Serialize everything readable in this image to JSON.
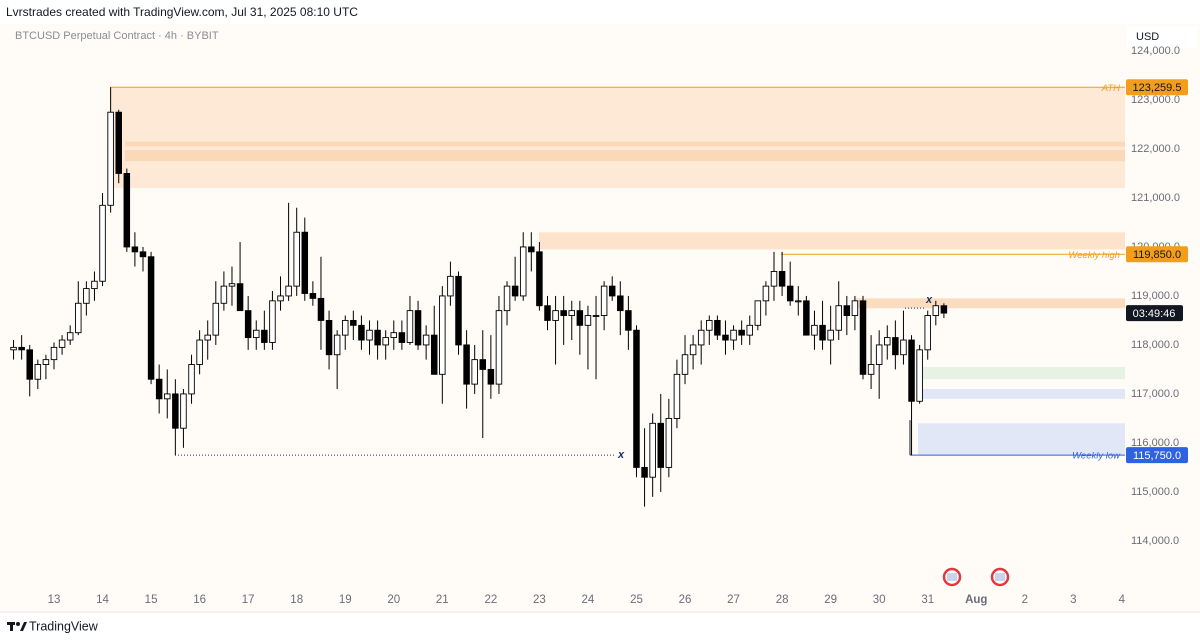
{
  "header": {
    "attribution": "Lvrstrades created with TradingView.com, Jul 31, 2025 08:10 UTC"
  },
  "footer": {
    "brand": "TradingView"
  },
  "chart_data": {
    "type": "candlestick",
    "title": "BTCUSD Perpetual Contract · 4h · BYBIT",
    "currency": "USD",
    "categories": [
      null,
      null,
      null,
      null,
      null,
      "13",
      null,
      null,
      null,
      null,
      null,
      "14",
      null,
      null,
      null,
      null,
      null,
      "15",
      null,
      null,
      null,
      null,
      null,
      "16",
      null,
      null,
      null,
      null,
      null,
      "17",
      null,
      null,
      null,
      null,
      null,
      "18",
      null,
      null,
      null,
      null,
      null,
      "19",
      null,
      null,
      null,
      null,
      null,
      "20",
      null,
      null,
      null,
      null,
      null,
      "21",
      null,
      null,
      null,
      null,
      null,
      "22",
      null,
      null,
      null,
      null,
      null,
      "23",
      null,
      null,
      null,
      null,
      null,
      "24",
      null,
      null,
      null,
      null,
      null,
      "25",
      null,
      null,
      null,
      null,
      null,
      "26",
      null,
      null,
      null,
      null,
      null,
      "27",
      null,
      null,
      null,
      null,
      null,
      "28",
      null,
      null,
      null,
      null,
      null,
      "29",
      null,
      null,
      null,
      null,
      null,
      "30",
      null,
      null,
      null,
      null,
      null,
      "31",
      null,
      null,
      null,
      null,
      null,
      "Aug",
      null,
      null,
      null,
      null,
      null,
      "2",
      null,
      null,
      null,
      null,
      null,
      "3",
      null,
      null,
      null,
      null,
      null,
      "4"
    ],
    "open": [
      117900,
      117950,
      117900,
      117300,
      117600,
      117700,
      117950,
      118100,
      118250,
      118850,
      119150,
      119300,
      120850,
      122750,
      121500,
      120000,
      119900,
      119800,
      117300,
      116900,
      117000,
      116300,
      117000,
      117600,
      118100,
      118200,
      118850,
      119200,
      119250,
      118700,
      118150,
      118300,
      118050,
      118900,
      119000,
      119200,
      120300,
      119050,
      118950,
      118500,
      117800,
      118200,
      118500,
      118400,
      118100,
      118300,
      118000,
      118150,
      118250,
      118050,
      118700,
      118000,
      118200,
      117400,
      119000,
      119400,
      118000,
      117200,
      117700,
      117500,
      117200,
      118700,
      119200,
      119000,
      120000,
      119900,
      118800,
      118500,
      118700,
      118600,
      118700,
      118400,
      118600,
      118600,
      119200,
      119000,
      118700,
      118300,
      115500,
      115300,
      116400,
      115500,
      116500,
      117400,
      117800,
      118000,
      118300,
      118500,
      118200,
      118100,
      118300,
      118200,
      118400,
      118900,
      119200,
      119500,
      119200,
      118900,
      118900,
      118200,
      118400,
      118100,
      118300,
      118800,
      118600,
      118900,
      117400,
      117600,
      118000,
      118150,
      117800,
      118100,
      116850,
      117900,
      118600,
      118800,
      null,
      null,
      null,
      null,
      null,
      null,
      null,
      null,
      null,
      null,
      null,
      null,
      null,
      null,
      null,
      null,
      null,
      null,
      null,
      null,
      null,
      null
    ],
    "high": [
      118100,
      118200,
      118000,
      117700,
      117800,
      118050,
      118200,
      118400,
      119300,
      119300,
      119500,
      121100,
      123259.5,
      122800,
      121600,
      120300,
      120000,
      119900,
      117600,
      117500,
      117300,
      117100,
      117800,
      118300,
      118500,
      119300,
      119500,
      119600,
      120100,
      119000,
      118500,
      118700,
      119100,
      119400,
      120900,
      120800,
      120600,
      119300,
      119800,
      118700,
      118300,
      118600,
      118700,
      118600,
      118500,
      118500,
      118300,
      118500,
      118500,
      119000,
      118900,
      118400,
      118800,
      119200,
      119700,
      119500,
      118300,
      118000,
      118300,
      118200,
      119000,
      119300,
      119800,
      120300,
      120300,
      120100,
      119000,
      119000,
      119000,
      118900,
      118900,
      118800,
      119000,
      119300,
      119400,
      119300,
      119000,
      118400,
      116300,
      116600,
      117000,
      116900,
      117700,
      118200,
      118200,
      118500,
      118600,
      118600,
      118500,
      118400,
      118500,
      118600,
      118900,
      119300,
      119900,
      119900,
      119700,
      119200,
      119000,
      118700,
      118900,
      118800,
      119300,
      119000,
      119000,
      119000,
      118200,
      118300,
      118400,
      118500,
      118700,
      118200,
      118000,
      118700,
      118900,
      118850,
      null,
      null,
      null,
      null,
      null,
      null,
      null,
      null,
      null,
      null,
      null,
      null,
      null,
      null,
      null,
      null,
      null,
      null,
      null,
      null,
      null,
      null
    ],
    "low": [
      117700,
      117700,
      116950,
      117100,
      117300,
      117500,
      117800,
      118000,
      118200,
      118600,
      118900,
      119200,
      120700,
      121300,
      119900,
      119600,
      119500,
      117200,
      116600,
      116500,
      115750,
      115900,
      116800,
      117400,
      117700,
      118000,
      118700,
      118800,
      118700,
      117900,
      117900,
      117900,
      117900,
      118700,
      118900,
      119000,
      118900,
      118800,
      117900,
      117500,
      117100,
      117900,
      118100,
      117900,
      117800,
      117700,
      117700,
      117900,
      117900,
      118000,
      117900,
      117700,
      117400,
      116800,
      118800,
      117800,
      116700,
      117000,
      116100,
      116900,
      117000,
      118400,
      118900,
      118900,
      119500,
      118700,
      118300,
      117600,
      118000,
      118100,
      117800,
      117500,
      117300,
      118300,
      118900,
      118200,
      117900,
      115300,
      114700,
      114900,
      115000,
      115300,
      116300,
      117200,
      117500,
      117600,
      118000,
      118100,
      117800,
      117900,
      118000,
      118000,
      118300,
      118600,
      118900,
      119000,
      118800,
      118600,
      118200,
      117900,
      117900,
      117600,
      118100,
      118200,
      118300,
      117300,
      117100,
      116900,
      117700,
      117500,
      117600,
      115750,
      116800,
      117700,
      118400,
      118550,
      null,
      null,
      null,
      null,
      null,
      null,
      null,
      null,
      null,
      null,
      null,
      null,
      null,
      null,
      null,
      null,
      null,
      null,
      null,
      null,
      null,
      null
    ],
    "close": [
      117950,
      117900,
      117300,
      117600,
      117700,
      117950,
      118100,
      118250,
      118850,
      119150,
      119300,
      120850,
      122750,
      121500,
      120000,
      119900,
      119800,
      117300,
      116900,
      117000,
      116300,
      117000,
      117600,
      118100,
      118200,
      118850,
      119200,
      119250,
      118700,
      118150,
      118300,
      118050,
      118900,
      119000,
      119200,
      120300,
      119050,
      118950,
      118500,
      117800,
      118200,
      118500,
      118400,
      118100,
      118300,
      118000,
      118150,
      118250,
      118050,
      118700,
      118000,
      118200,
      117400,
      119000,
      119400,
      118000,
      117200,
      117700,
      117500,
      117200,
      118700,
      119200,
      119000,
      120000,
      119900,
      118800,
      118500,
      118700,
      118600,
      118700,
      118400,
      118600,
      118600,
      119200,
      119000,
      118700,
      118300,
      115500,
      115300,
      116400,
      115500,
      116500,
      117400,
      117800,
      118000,
      118300,
      118500,
      118200,
      118100,
      118300,
      118200,
      118400,
      118900,
      119200,
      119500,
      119200,
      118900,
      118900,
      118200,
      118400,
      118100,
      118300,
      118800,
      118600,
      118900,
      117400,
      117600,
      118000,
      118150,
      117800,
      118100,
      116850,
      117900,
      118600,
      118800,
      118650,
      null,
      null,
      null,
      null,
      null,
      null,
      null,
      null,
      null,
      null,
      null,
      null,
      null,
      null,
      null,
      null,
      null,
      null,
      null,
      null,
      null,
      null
    ],
    "up_color": "#ffffff",
    "down_color": "#000000",
    "ylim": [
      113100,
      124530
    ],
    "yticks": [
      {
        "value": 114000,
        "label": "114,000.0"
      },
      {
        "value": 115000,
        "label": "115,000.0"
      },
      {
        "value": 116000,
        "label": "116,000.0"
      },
      {
        "value": 117000,
        "label": "117,000.0"
      },
      {
        "value": 118000,
        "label": "118,000.0"
      },
      {
        "value": 119000,
        "label": "119,000.0"
      },
      {
        "value": 120000,
        "label": "120,000.0"
      },
      {
        "value": 121000,
        "label": "121,000.0"
      },
      {
        "value": 122000,
        "label": "122,000.0"
      },
      {
        "value": 123000,
        "label": "123,000.0"
      },
      {
        "value": 124000,
        "label": "124,000.0"
      }
    ],
    "levels": [
      {
        "name": "ATH",
        "value": 123259.5,
        "label": "123,259.5",
        "color": "#f29d1b"
      },
      {
        "name": "Weekly high",
        "value": 119850,
        "label": "119,850.0",
        "color": "#f29d1b"
      },
      {
        "name": "Weekly low",
        "value": 115750,
        "label": "115,750.0",
        "color": "#2f62e0"
      }
    ],
    "countdown": "03:49:46",
    "markers": [
      {
        "label": "x",
        "value": 115750
      },
      {
        "label": "x",
        "value": 118750
      }
    ],
    "zones": [
      {
        "from": 121200,
        "to": 123259.5,
        "color": "#fde9d6"
      },
      {
        "from": 122050,
        "to": 122150,
        "color": "#fbd9b8"
      },
      {
        "from": 121750,
        "to": 121980,
        "color": "#fbd9b8"
      },
      {
        "from": 119950,
        "to": 120300,
        "color": "#fde3cc"
      },
      {
        "from": 118750,
        "to": 118950,
        "color": "#fcdcbf"
      },
      {
        "from": 117300,
        "to": 117550,
        "color": "#e8f2e4"
      },
      {
        "from": 116900,
        "to": 117100,
        "color": "#e1e7f7"
      },
      {
        "from": 115750,
        "to": 116400,
        "color": "#e1e7f7"
      }
    ]
  }
}
